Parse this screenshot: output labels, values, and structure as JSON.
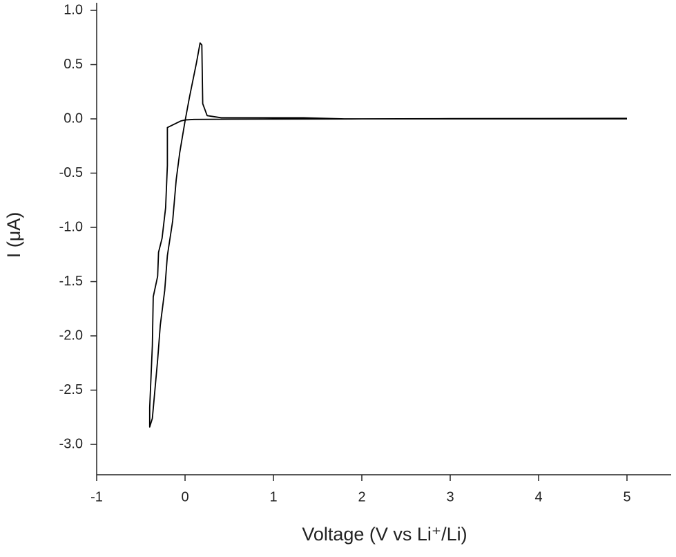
{
  "chart_data": {
    "type": "line",
    "xlabel": "Voltage (V vs Li⁺/Li)",
    "ylabel": "I (μA)",
    "color": "#000000",
    "x": [
      5,
      4,
      3,
      2,
      1,
      0.5,
      0.1,
      0,
      -0.05,
      -0.1,
      -0.15,
      -0.2,
      -0.2,
      -0.22,
      -0.26,
      -0.3,
      -0.31,
      -0.36,
      -0.37,
      -0.4,
      -0.4,
      -0.37,
      -0.31,
      -0.28,
      -0.23,
      -0.2,
      -0.14,
      -0.1,
      -0.06,
      0,
      0.05,
      0.13,
      0.17,
      0.19,
      0.2,
      0.25,
      0.41,
      1.03,
      1.34,
      1.8,
      5
    ],
    "values": [
      0.005,
      0.003,
      0.002,
      0.0,
      -0.002,
      -0.003,
      -0.005,
      -0.01,
      -0.02,
      -0.04,
      -0.06,
      -0.08,
      -0.43,
      -0.82,
      -1.1,
      -1.23,
      -1.45,
      -1.64,
      -2.09,
      -2.66,
      -2.84,
      -2.76,
      -2.22,
      -1.9,
      -1.58,
      -1.26,
      -0.94,
      -0.56,
      -0.31,
      -0.02,
      0.2,
      0.52,
      0.7,
      0.68,
      0.14,
      0.03,
      0.01,
      0.01,
      0.01,
      0.0,
      0.0
    ],
    "xlim": [
      -1,
      5.5
    ],
    "xticks": [
      -1,
      0,
      1,
      2,
      3,
      4,
      5
    ],
    "ylim": [
      -3.28,
      1.0
    ],
    "yticks": [
      {
        "value": 1,
        "label": "1.0"
      },
      0.5,
      {
        "value": 0,
        "label": "0.0"
      },
      -0.5,
      {
        "value": -1,
        "label": "-1.0"
      },
      -1.5,
      {
        "value": -2,
        "label": "-2.0"
      },
      -2.5,
      {
        "value": -3,
        "label": "-3.0"
      }
    ],
    "grid": false
  }
}
